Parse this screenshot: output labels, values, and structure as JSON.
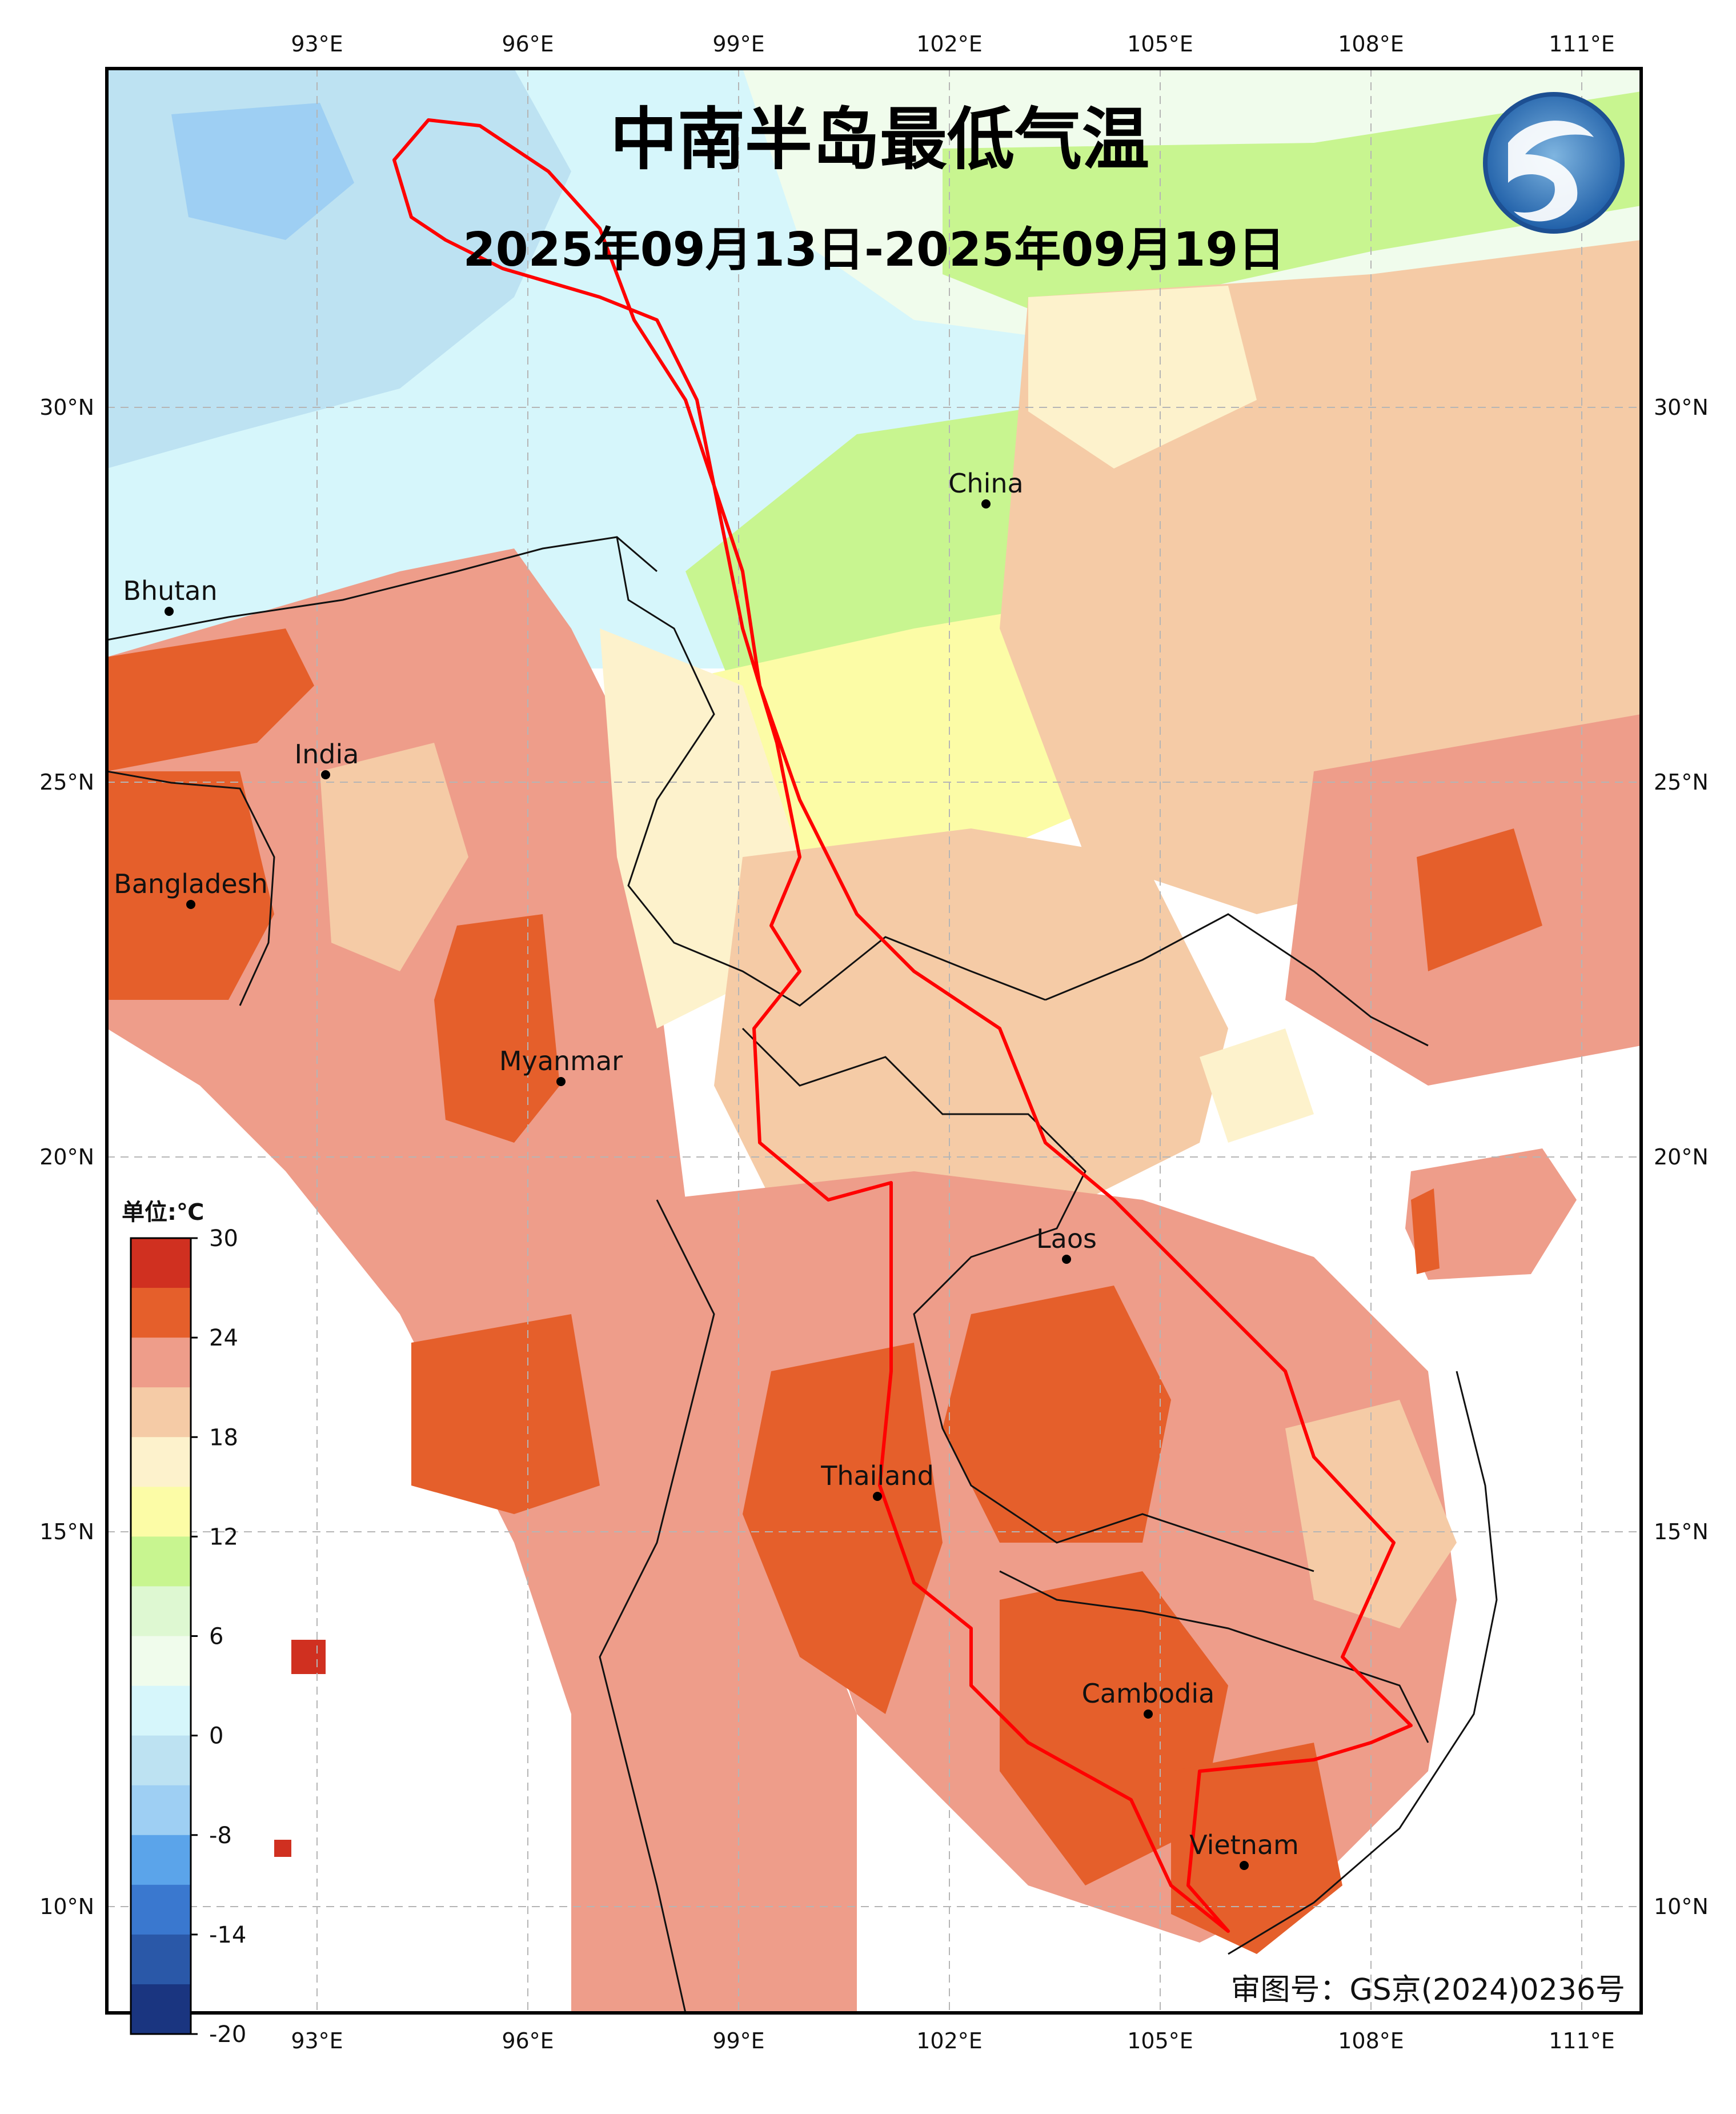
{
  "title": "中南半岛最低气温",
  "date_range": "2025年09月13日-2025年09月19日",
  "approval_number": "审图号：GS京(2024)0236号",
  "legend": {
    "unit": "单位:℃",
    "tick_labels": [
      "30",
      "24",
      "18",
      "12",
      "6",
      "0",
      "-8",
      "-14",
      "-20"
    ],
    "colors": [
      "#d03020",
      "#e55f2b",
      "#ee9d8a",
      "#f5cba6",
      "#fdf2cc",
      "#fcfca6",
      "#c8f590",
      "#def8d2",
      "#f0fcec",
      "#d6f6fb",
      "#bde2f2",
      "#9ecff3",
      "#5ba4ea",
      "#3a78cf",
      "#2a58a8",
      "#1a3580"
    ]
  },
  "axes": {
    "lon_labels": [
      "93°E",
      "96°E",
      "99°E",
      "102°E",
      "105°E",
      "108°E",
      "111°E"
    ],
    "lat_labels": [
      "30°N",
      "25°N",
      "20°N",
      "15°N",
      "10°N"
    ]
  },
  "places": [
    {
      "name": "China"
    },
    {
      "name": "Bhutan"
    },
    {
      "name": "India"
    },
    {
      "name": "Bangladesh"
    },
    {
      "name": "Myanmar"
    },
    {
      "name": "Laos"
    },
    {
      "name": "Thailand"
    },
    {
      "name": "Cambodia"
    },
    {
      "name": "Vietnam"
    }
  ],
  "map_colors": {
    "sea": "#ffffff",
    "frame": "#000000",
    "basin_outline": "#ff0000",
    "border": "#111111"
  },
  "logo_icon": "stylized-blue-emblem"
}
